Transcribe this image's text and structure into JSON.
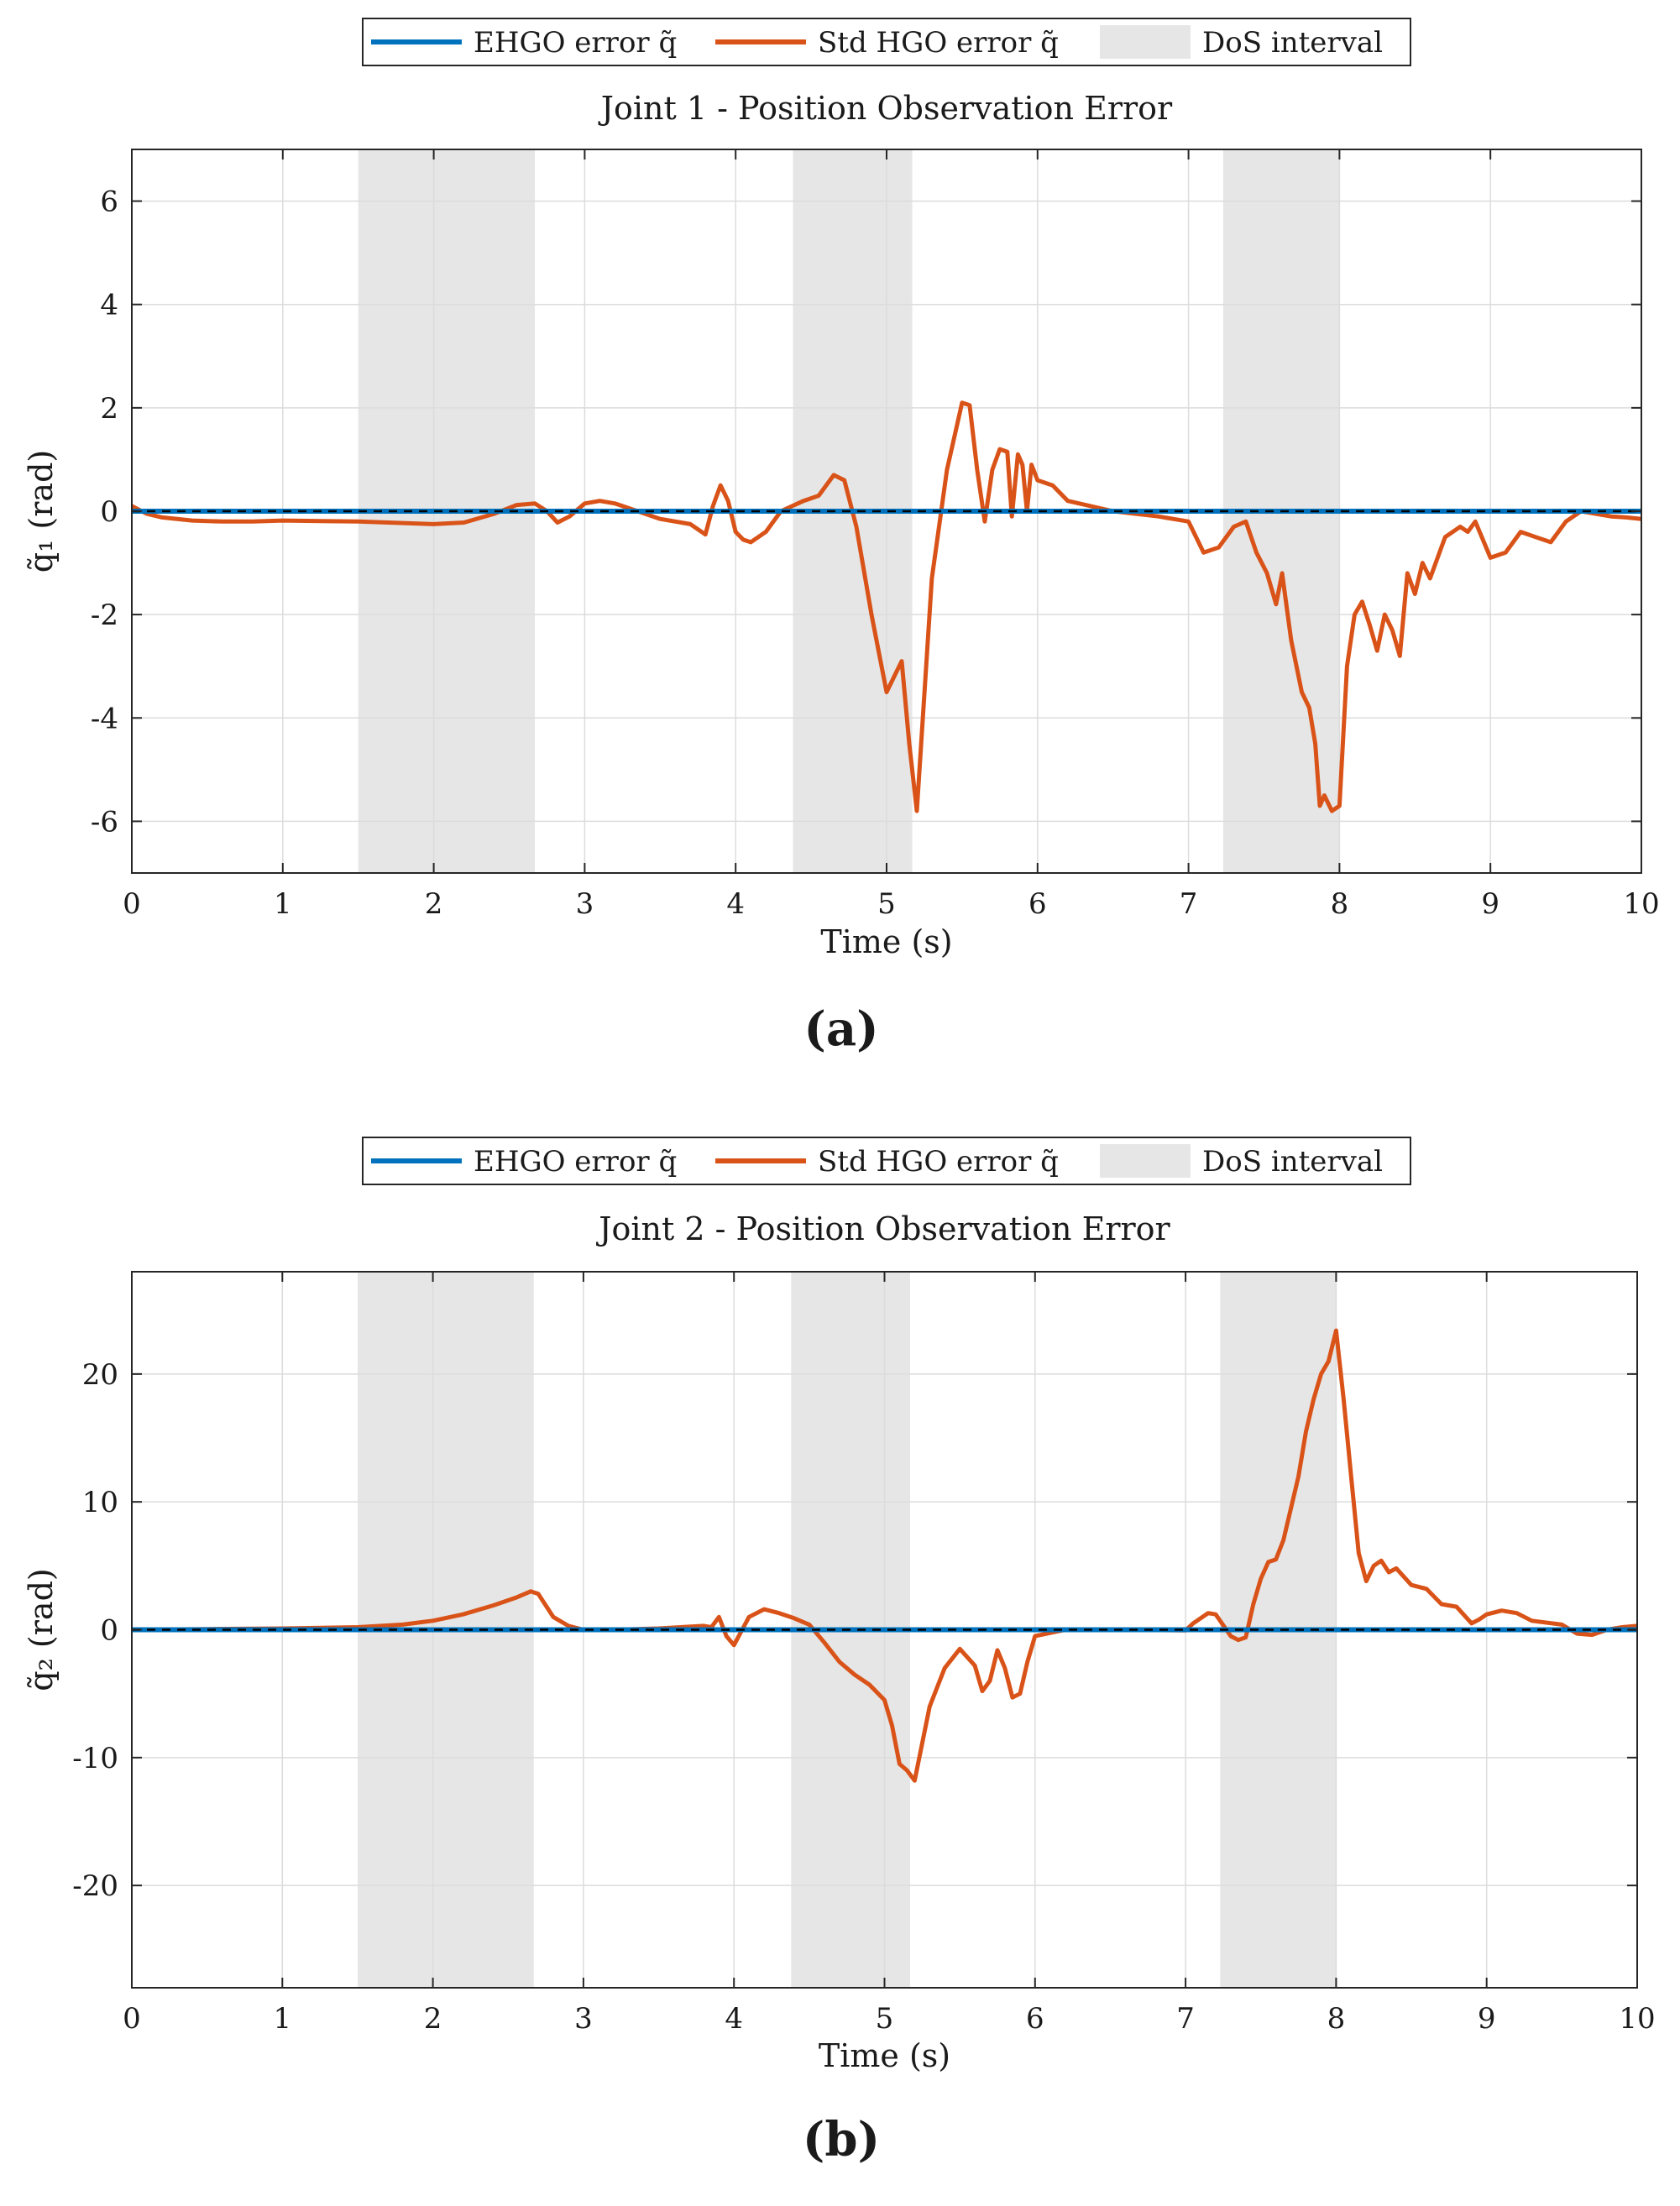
{
  "chart_data": [
    {
      "type": "line",
      "panel_label": "(a)",
      "title": "Joint 1 - Position Observation Error",
      "xlabel": "Time (s)",
      "ylabel": "q̃₁ (rad)",
      "xlim": [
        0,
        10
      ],
      "ylim": [
        -7,
        7
      ],
      "xticks": [
        0,
        1,
        2,
        3,
        4,
        5,
        6,
        7,
        8,
        9,
        10
      ],
      "yticks": [
        -6,
        -4,
        -2,
        0,
        2,
        4,
        6
      ],
      "ytick_labels": [
        "-6",
        "-4",
        "-2",
        "0",
        "2",
        "4",
        "6"
      ],
      "grid": true,
      "legend_position": "top-center",
      "legend": [
        {
          "label": "EHGO error q̃",
          "kind": "line",
          "color": "#0072bd"
        },
        {
          "label": "Std HGO error q̃",
          "kind": "line",
          "color": "#d95319"
        },
        {
          "label": "DoS interval",
          "kind": "patch",
          "color": "#e6e6e6"
        }
      ],
      "dos_intervals": [
        [
          1.5,
          2.67
        ],
        [
          4.38,
          5.17
        ],
        [
          7.23,
          8.0
        ]
      ],
      "series": [
        {
          "name": "EHGO error q̃",
          "color": "#0072bd",
          "x": [
            0,
            10
          ],
          "y": [
            0,
            0
          ]
        },
        {
          "name": "Std HGO error q̃",
          "color": "#d95319",
          "x": [
            0,
            0.1,
            0.2,
            0.4,
            0.6,
            0.8,
            1.0,
            1.5,
            2.0,
            2.2,
            2.4,
            2.55,
            2.67,
            2.75,
            2.82,
            2.9,
            3.0,
            3.1,
            3.2,
            3.3,
            3.5,
            3.7,
            3.8,
            3.85,
            3.9,
            3.95,
            4.0,
            4.05,
            4.1,
            4.2,
            4.3,
            4.45,
            4.55,
            4.65,
            4.72,
            4.8,
            4.9,
            5.0,
            5.05,
            5.1,
            5.15,
            5.2,
            5.3,
            5.4,
            5.5,
            5.55,
            5.6,
            5.65,
            5.7,
            5.75,
            5.8,
            5.83,
            5.87,
            5.9,
            5.93,
            5.96,
            6.0,
            6.1,
            6.2,
            6.5,
            6.8,
            7.0,
            7.1,
            7.2,
            7.3,
            7.38,
            7.45,
            7.52,
            7.58,
            7.62,
            7.68,
            7.75,
            7.8,
            7.84,
            7.87,
            7.9,
            7.95,
            8.0,
            8.05,
            8.1,
            8.15,
            8.2,
            8.25,
            8.3,
            8.35,
            8.4,
            8.45,
            8.5,
            8.55,
            8.6,
            8.7,
            8.8,
            8.85,
            8.9,
            9.0,
            9.1,
            9.2,
            9.3,
            9.4,
            9.5,
            9.6,
            9.7,
            9.8,
            9.9,
            10.0
          ],
          "y": [
            0.1,
            -0.05,
            -0.12,
            -0.18,
            -0.2,
            -0.2,
            -0.18,
            -0.2,
            -0.25,
            -0.22,
            -0.05,
            0.12,
            0.15,
            0.0,
            -0.22,
            -0.1,
            0.15,
            0.2,
            0.15,
            0.05,
            -0.15,
            -0.25,
            -0.45,
            0.1,
            0.5,
            0.2,
            -0.4,
            -0.55,
            -0.6,
            -0.4,
            0.0,
            0.2,
            0.3,
            0.7,
            0.6,
            -0.3,
            -2.0,
            -3.5,
            -3.2,
            -2.9,
            -4.5,
            -5.8,
            -1.3,
            0.8,
            2.1,
            2.05,
            0.8,
            -0.2,
            0.8,
            1.2,
            1.15,
            -0.1,
            1.1,
            0.9,
            0.0,
            0.9,
            0.6,
            0.5,
            0.2,
            0.0,
            -0.1,
            -0.2,
            -0.8,
            -0.7,
            -0.3,
            -0.2,
            -0.8,
            -1.2,
            -1.8,
            -1.2,
            -2.5,
            -3.5,
            -3.8,
            -4.5,
            -5.7,
            -5.5,
            -5.8,
            -5.7,
            -3.0,
            -2.0,
            -1.75,
            -2.2,
            -2.7,
            -2.0,
            -2.3,
            -2.8,
            -1.2,
            -1.6,
            -1.0,
            -1.3,
            -0.5,
            -0.3,
            -0.4,
            -0.2,
            -0.9,
            -0.8,
            -0.4,
            -0.5,
            -0.6,
            -0.2,
            0.0,
            -0.05,
            -0.1,
            -0.12,
            -0.15
          ]
        }
      ]
    },
    {
      "type": "line",
      "panel_label": "(b)",
      "title": "Joint 2 - Position Observation Error",
      "xlabel": "Time (s)",
      "ylabel": "q̃₂ (rad)",
      "xlim": [
        0,
        10
      ],
      "ylim": [
        -28,
        28
      ],
      "xticks": [
        0,
        1,
        2,
        3,
        4,
        5,
        6,
        7,
        8,
        9,
        10
      ],
      "yticks": [
        -20,
        -10,
        0,
        10,
        20
      ],
      "ytick_labels": [
        "-20",
        "-10",
        "0",
        "10",
        "20"
      ],
      "grid": true,
      "legend_position": "top-center",
      "legend": [
        {
          "label": "EHGO error q̃",
          "kind": "line",
          "color": "#0072bd"
        },
        {
          "label": "Std HGO error q̃",
          "kind": "line",
          "color": "#d95319"
        },
        {
          "label": "DoS interval",
          "kind": "patch",
          "color": "#e6e6e6"
        }
      ],
      "dos_intervals": [
        [
          1.5,
          2.67
        ],
        [
          4.38,
          5.17
        ],
        [
          7.23,
          8.0
        ]
      ],
      "series": [
        {
          "name": "EHGO error q̃",
          "color": "#0072bd",
          "x": [
            0,
            10
          ],
          "y": [
            0,
            0
          ]
        },
        {
          "name": "Std HGO error q̃",
          "color": "#d95319",
          "x": [
            0,
            0.5,
            1.0,
            1.5,
            1.8,
            2.0,
            2.2,
            2.4,
            2.55,
            2.65,
            2.7,
            2.8,
            2.9,
            3.0,
            3.2,
            3.5,
            3.8,
            3.85,
            3.9,
            3.95,
            4.0,
            4.1,
            4.2,
            4.3,
            4.4,
            4.5,
            4.6,
            4.7,
            4.8,
            4.9,
            5.0,
            5.05,
            5.1,
            5.15,
            5.2,
            5.3,
            5.4,
            5.5,
            5.6,
            5.65,
            5.7,
            5.75,
            5.8,
            5.85,
            5.9,
            5.95,
            6.0,
            6.2,
            6.5,
            7.0,
            7.05,
            7.15,
            7.2,
            7.3,
            7.35,
            7.4,
            7.45,
            7.5,
            7.55,
            7.6,
            7.65,
            7.7,
            7.75,
            7.8,
            7.85,
            7.9,
            7.95,
            8.0,
            8.05,
            8.1,
            8.15,
            8.2,
            8.25,
            8.3,
            8.35,
            8.4,
            8.5,
            8.6,
            8.7,
            8.8,
            8.9,
            8.95,
            9.0,
            9.1,
            9.2,
            9.3,
            9.5,
            9.6,
            9.7,
            9.8,
            9.9,
            10.0
          ],
          "y": [
            0.0,
            0.05,
            0.1,
            0.2,
            0.4,
            0.7,
            1.2,
            1.9,
            2.5,
            3.0,
            2.8,
            1.0,
            0.3,
            0.0,
            0.0,
            0.1,
            0.3,
            0.2,
            1.0,
            -0.5,
            -1.2,
            1.0,
            1.6,
            1.3,
            0.9,
            0.4,
            -1.0,
            -2.5,
            -3.5,
            -4.3,
            -5.5,
            -7.5,
            -10.5,
            -11.0,
            -11.8,
            -6.0,
            -3.0,
            -1.5,
            -2.8,
            -4.8,
            -4.0,
            -1.6,
            -3.0,
            -5.3,
            -5.0,
            -2.5,
            -0.5,
            0.0,
            0.0,
            -0.05,
            0.5,
            1.3,
            1.2,
            -0.5,
            -0.8,
            -0.6,
            2.0,
            4.0,
            5.3,
            5.5,
            7.0,
            9.5,
            12.0,
            15.5,
            18.0,
            20.0,
            21.0,
            23.4,
            18.0,
            12.0,
            6.0,
            3.8,
            5.0,
            5.4,
            4.5,
            4.8,
            3.5,
            3.2,
            2.0,
            1.8,
            0.5,
            0.8,
            1.2,
            1.5,
            1.3,
            0.7,
            0.4,
            -0.3,
            -0.4,
            0.0,
            0.2,
            0.3
          ]
        }
      ]
    }
  ]
}
